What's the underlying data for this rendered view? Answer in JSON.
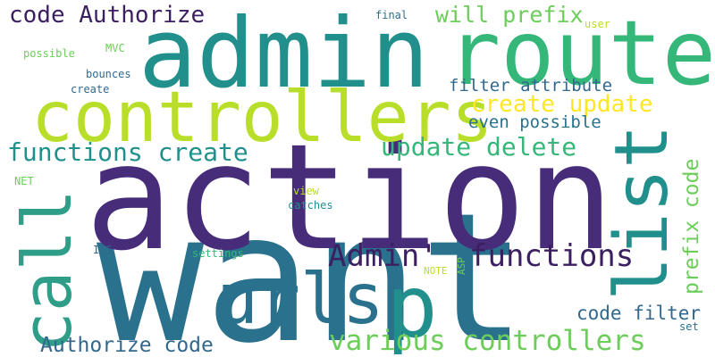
{
  "colors": {
    "background": "#ffffff",
    "deep_purple": "#472c7a",
    "dark_purple": "#3b1f61",
    "teal": "#21908c",
    "steel_blue": "#2a718e",
    "dark_teal": "#31688e",
    "green": "#35b779",
    "light_green": "#6ccd5a",
    "yellow_green": "#b8de29",
    "yellow": "#fde725"
  },
  "words": [
    {
      "id": "action",
      "text": "action"
    },
    {
      "id": "admin",
      "text": "admin"
    },
    {
      "id": "route",
      "text": "route"
    },
    {
      "id": "controllers",
      "text": "controllers"
    },
    {
      "id": "want",
      "text": "want"
    },
    {
      "id": "p",
      "text": "p"
    },
    {
      "id": "urls",
      "text": "urls"
    },
    {
      "id": "call",
      "text": "call"
    },
    {
      "id": "list",
      "text": "list"
    },
    {
      "id": "code-authorize",
      "text": "code Authorize"
    },
    {
      "id": "will-prefix",
      "text": "will prefix"
    },
    {
      "id": "create-update",
      "text": "create update"
    },
    {
      "id": "update-delete",
      "text": "update delete"
    },
    {
      "id": "functions-create",
      "text": "functions create"
    },
    {
      "id": "admin-functions-a",
      "text": "Admin'"
    },
    {
      "id": "admin-functions-b",
      "text": "functions"
    },
    {
      "id": "various-controllers",
      "text": "various controllers"
    },
    {
      "id": "authorize-code",
      "text": "Authorize code"
    },
    {
      "id": "code-filter",
      "text": "code filter"
    },
    {
      "id": "filter-attribute",
      "text": "filter attribute"
    },
    {
      "id": "even-possible",
      "text": "even possible"
    },
    {
      "id": "prefix-code",
      "text": "prefix code"
    },
    {
      "id": "final",
      "text": "final"
    },
    {
      "id": "user",
      "text": "user"
    },
    {
      "id": "mvc",
      "text": "MVC"
    },
    {
      "id": "possible",
      "text": "possible"
    },
    {
      "id": "bounces",
      "text": "bounces"
    },
    {
      "id": "create",
      "text": "create"
    },
    {
      "id": "net",
      "text": "NET"
    },
    {
      "id": "view",
      "text": "view"
    },
    {
      "id": "catches",
      "text": "catches"
    },
    {
      "id": "iis",
      "text": "IIS"
    },
    {
      "id": "settings",
      "text": "settings"
    },
    {
      "id": "note",
      "text": "NOTE"
    },
    {
      "id": "asp",
      "text": "ASP"
    },
    {
      "id": "set",
      "text": "set"
    }
  ]
}
